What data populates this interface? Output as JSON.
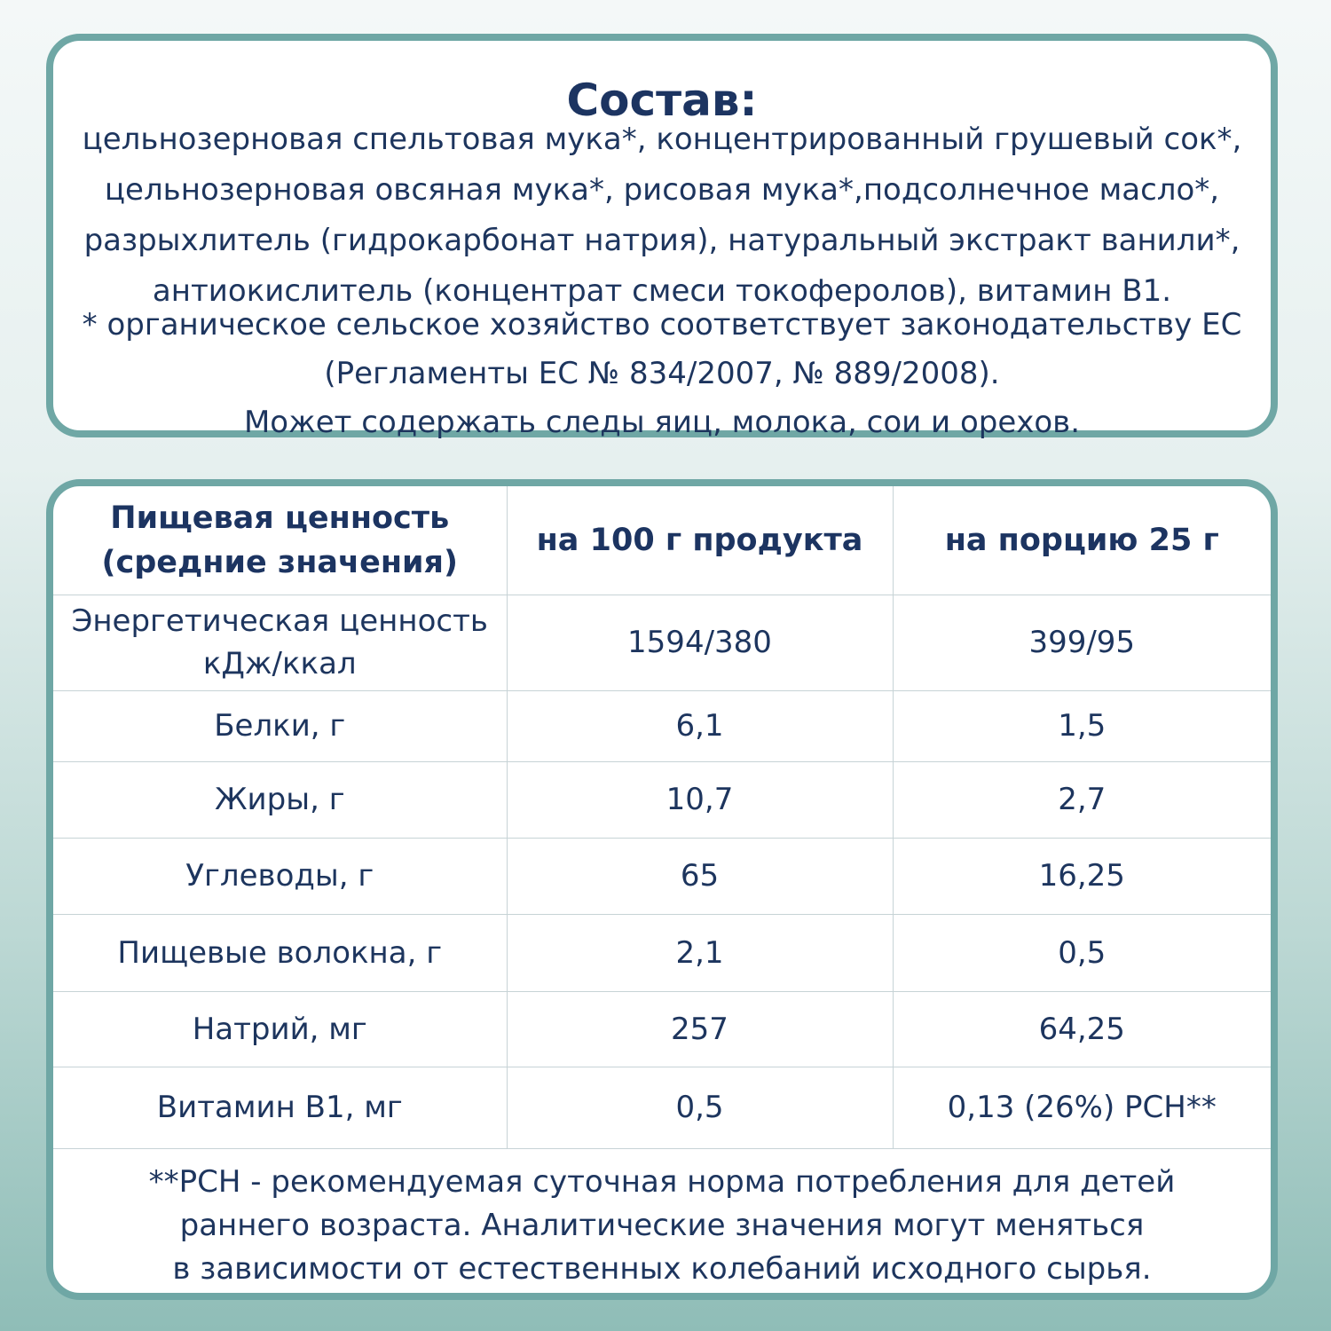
{
  "composition": {
    "title": "Состав:",
    "lines": [
      "цельнозерновая спельтовая мука*, концентрированный грушевый сок*,",
      "цельнозерновая овсяная мука*, рисовая мука*,подсолнечное масло*,",
      "разрыхлитель (гидрокарбонат натрия), натуральный экстракт ванили*,",
      "антиокислитель (концентрат смеси токоферолов), витамин В1."
    ],
    "note_lines": [
      "* органическое сельское хозяйство соответствует законодательству ЕС",
      "(Регламенты ЕС № 834/2007, № 889/2008).",
      "Может содержать следы яиц, молока, сои и орехов."
    ]
  },
  "nutrition": {
    "headers": {
      "name_line1": "Пищевая ценность",
      "name_line2": "(средние значения)",
      "per_100": "на 100 г продукта",
      "per_serving": "на порцию 25 г"
    },
    "rows": [
      {
        "name_line1": "Энергетическая ценность",
        "name_line2": "кДж/ккал",
        "per_100": "1594/380",
        "per_serving": "399/95"
      },
      {
        "name_line1": "Белки, г",
        "name_line2": "",
        "per_100": "6,1",
        "per_serving": "1,5"
      },
      {
        "name_line1": "Жиры, г",
        "name_line2": "",
        "per_100": "10,7",
        "per_serving": "2,7"
      },
      {
        "name_line1": "Углеводы, г",
        "name_line2": "",
        "per_100": "65",
        "per_serving": "16,25"
      },
      {
        "name_line1": "Пищевые волокна, г",
        "name_line2": "",
        "per_100": "2,1",
        "per_serving": "0,5"
      },
      {
        "name_line1": "Натрий, мг",
        "name_line2": "",
        "per_100": "257",
        "per_serving": "64,25"
      },
      {
        "name_line1": "Витамин В1, мг",
        "name_line2": "",
        "per_100": "0,5",
        "per_serving": "0,13 (26%) РСН**"
      }
    ],
    "footnote_lines": [
      "**РСН - рекомендуемая суточная норма потребления для детей",
      "раннего возраста. Аналитические значения могут меняться",
      "в зависимости от естественных колебаний исходного сырья."
    ]
  },
  "colors": {
    "text": "#1d355e",
    "border": "#6fa7a5",
    "card_background": "#ffffff",
    "grid_line": "#c7d3d6"
  }
}
